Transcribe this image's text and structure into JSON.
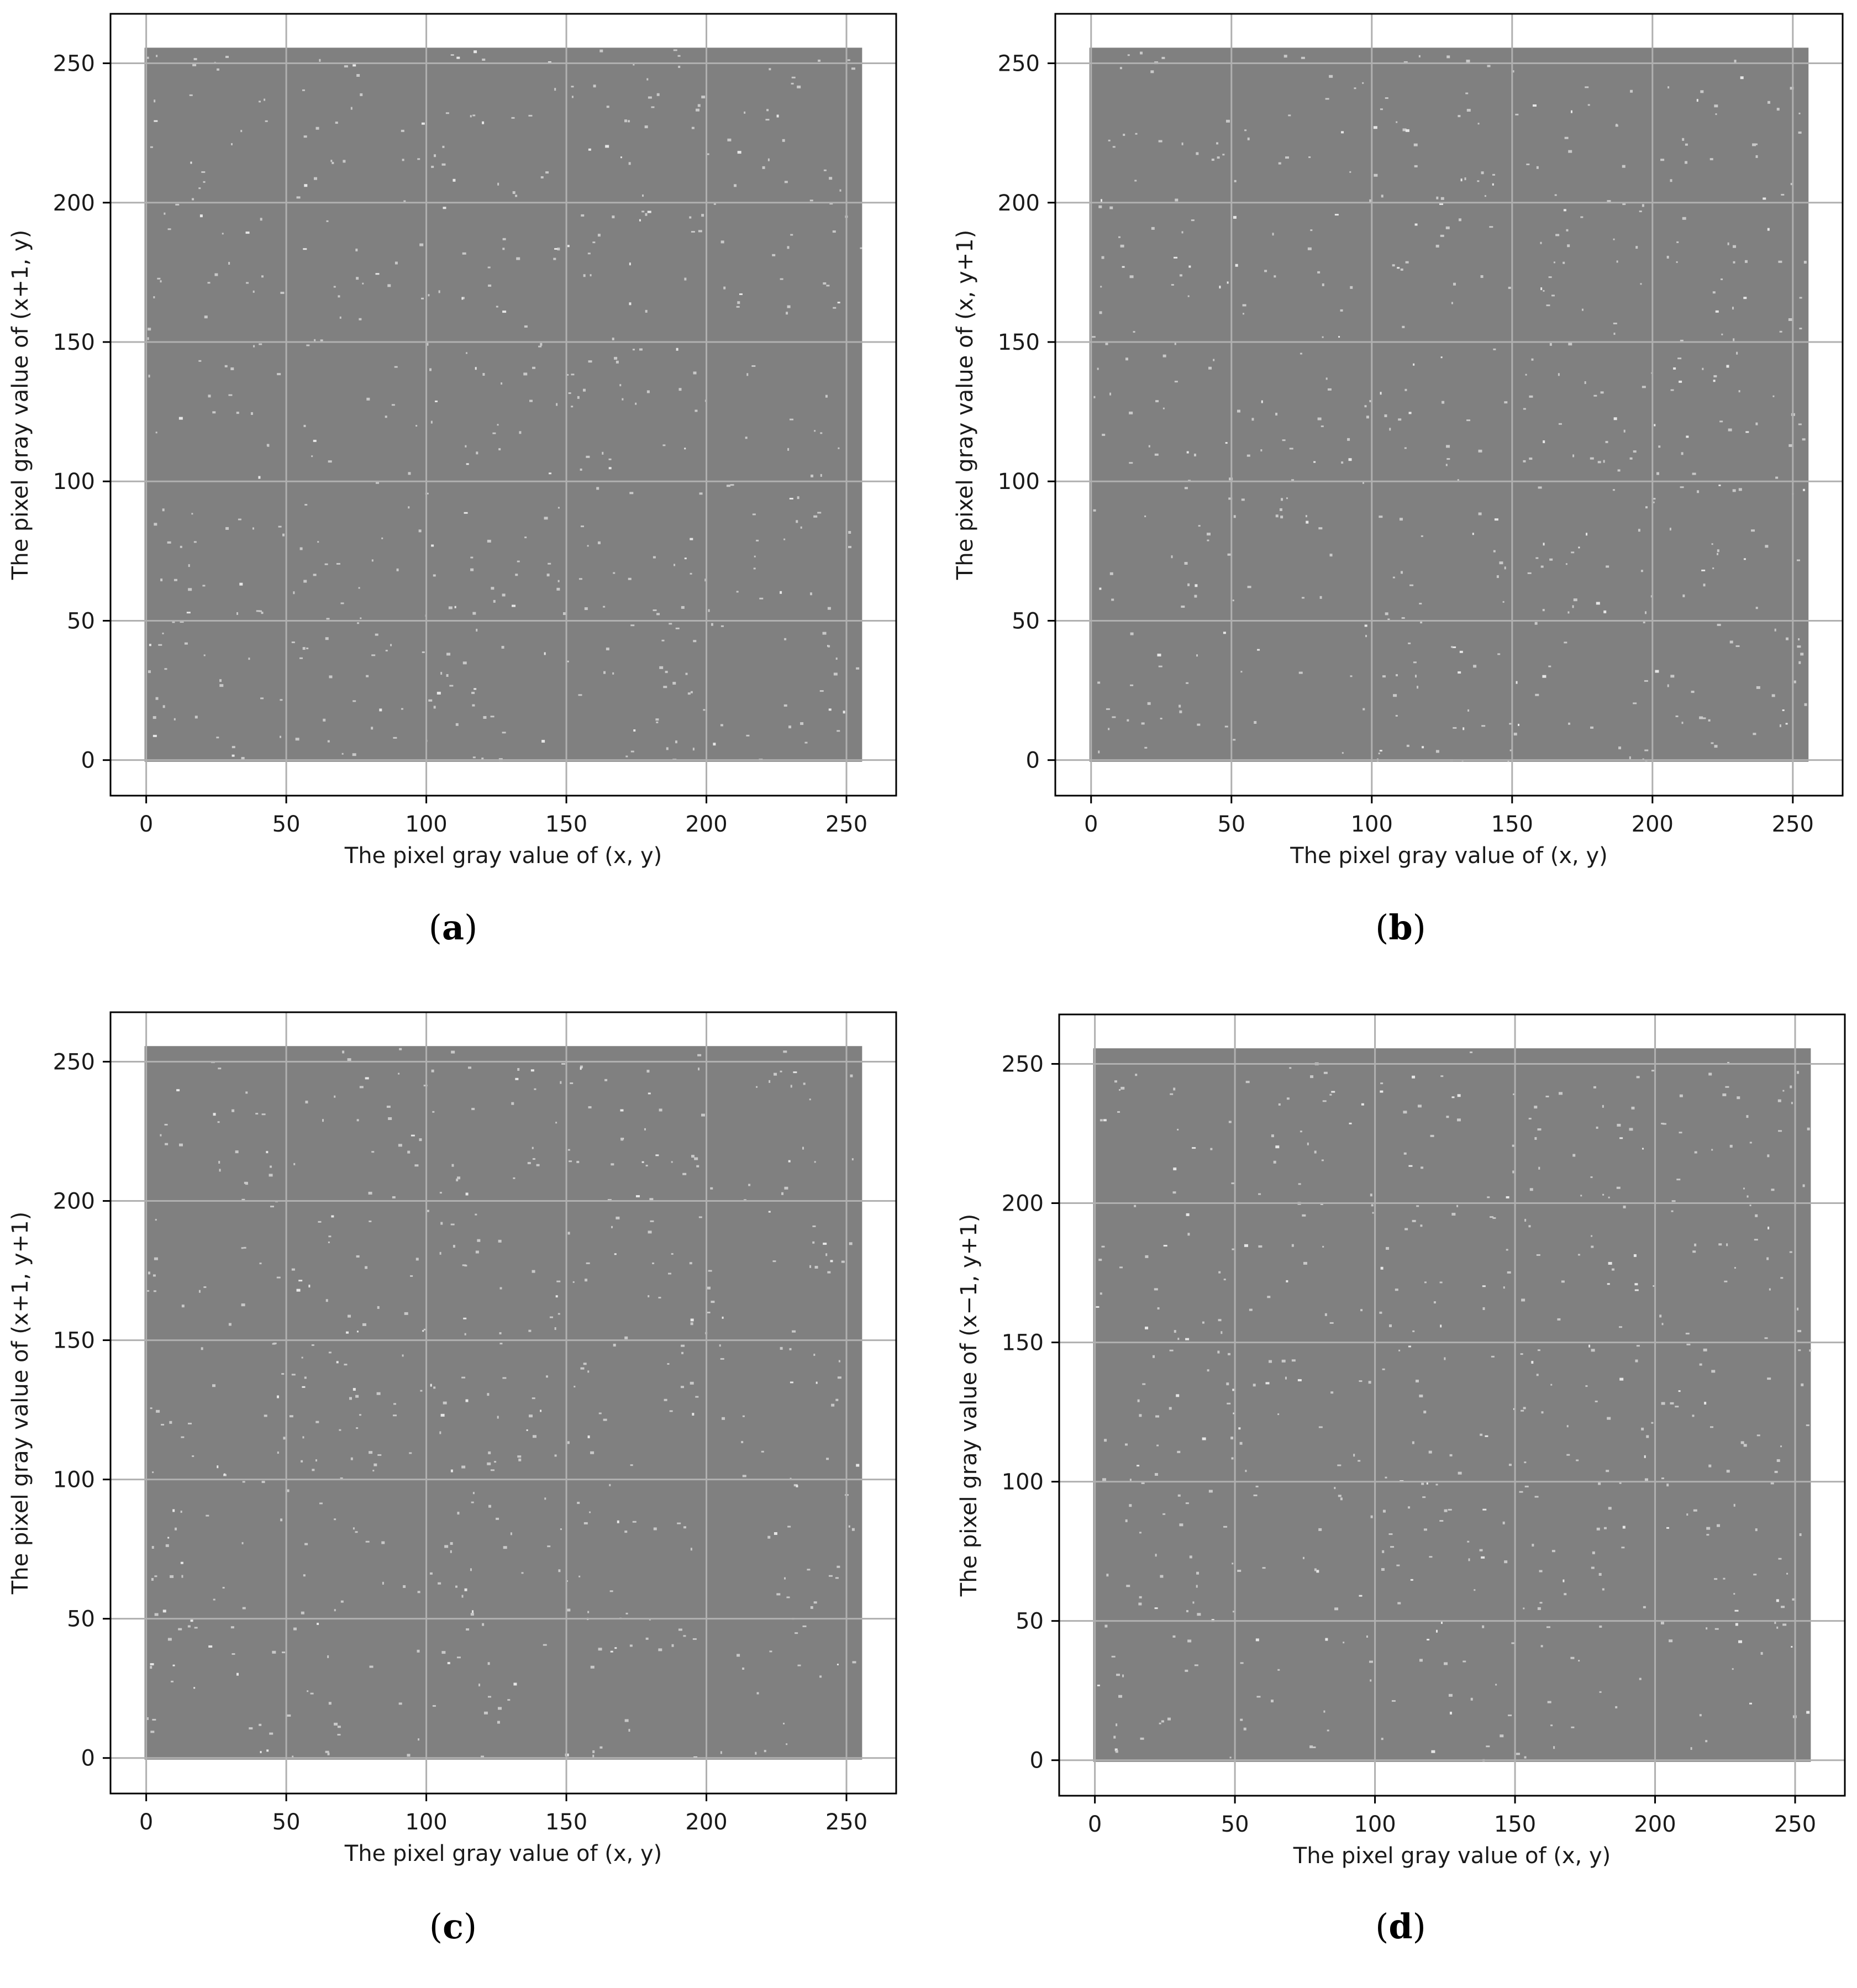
{
  "chart_data": [
    {
      "panel": "a",
      "type": "scatter",
      "xlabel": "The pixel gray value of (x, y)",
      "ylabel": "The pixel gray value of (x+1, y)",
      "xlim": [
        -12.75,
        267.75
      ],
      "ylim": [
        -12.75,
        267.75
      ],
      "x_ticks": [
        0,
        50,
        100,
        150,
        200,
        250
      ],
      "y_ticks": [
        0,
        50,
        100,
        150,
        200,
        250
      ],
      "grid": true,
      "point_color": "#808080",
      "coverage": {
        "x_range": [
          0,
          255
        ],
        "y_range": [
          0,
          255
        ],
        "distribution": "uniform over all gray-level pairs"
      }
    },
    {
      "panel": "b",
      "type": "scatter",
      "xlabel": "The pixel gray value of (x, y)",
      "ylabel": "The pixel gray value of (x, y+1)",
      "xlim": [
        -12.75,
        267.75
      ],
      "ylim": [
        -12.75,
        267.75
      ],
      "x_ticks": [
        0,
        50,
        100,
        150,
        200,
        250
      ],
      "y_ticks": [
        0,
        50,
        100,
        150,
        200,
        250
      ],
      "grid": true,
      "point_color": "#808080",
      "coverage": {
        "x_range": [
          0,
          255
        ],
        "y_range": [
          0,
          255
        ],
        "distribution": "uniform over all gray-level pairs"
      }
    },
    {
      "panel": "c",
      "type": "scatter",
      "xlabel": "The pixel gray value of (x, y)",
      "ylabel": "The pixel gray value of (x+1, y+1)",
      "xlim": [
        -12.75,
        267.75
      ],
      "ylim": [
        -12.75,
        267.75
      ],
      "x_ticks": [
        0,
        50,
        100,
        150,
        200,
        250
      ],
      "y_ticks": [
        0,
        50,
        100,
        150,
        200,
        250
      ],
      "grid": true,
      "point_color": "#808080",
      "coverage": {
        "x_range": [
          0,
          255
        ],
        "y_range": [
          0,
          255
        ],
        "distribution": "uniform over all gray-level pairs"
      }
    },
    {
      "panel": "d",
      "type": "scatter",
      "xlabel": "The pixel gray value of (x, y)",
      "ylabel": "The pixel gray value of (x−1, y+1)",
      "xlim": [
        -12.75,
        267.75
      ],
      "ylim": [
        -12.75,
        267.75
      ],
      "x_ticks": [
        0,
        50,
        100,
        150,
        200,
        250
      ],
      "y_ticks": [
        0,
        50,
        100,
        150,
        200,
        250
      ],
      "grid": true,
      "point_color": "#808080",
      "coverage": {
        "x_range": [
          0,
          255
        ],
        "y_range": [
          0,
          255
        ],
        "distribution": "uniform over all gray-level pairs"
      }
    }
  ],
  "captions": [
    {
      "letter": "a"
    },
    {
      "letter": "b"
    },
    {
      "letter": "c"
    },
    {
      "letter": "d"
    }
  ],
  "colors": {
    "points": "#808080",
    "speckle": "#c8c8c8",
    "grid": "#b0b0b0",
    "axes": "#000000"
  }
}
